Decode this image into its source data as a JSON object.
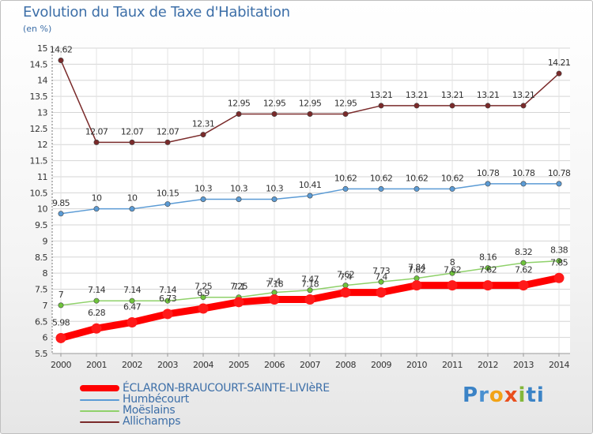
{
  "chart_data": {
    "type": "line",
    "title": "Evolution du Taux de Taxe d'Habitation",
    "ylabel": "(en %)",
    "xlabel": "",
    "x": [
      "2000",
      "2001",
      "2002",
      "2003",
      "2004",
      "2005",
      "2006",
      "2007",
      "2008",
      "2009",
      "2010",
      "2011",
      "2012",
      "2013",
      "2014"
    ],
    "ylim": [
      5.5,
      15
    ],
    "yticks": [
      "5.5",
      "6",
      "6.5",
      "7",
      "7.5",
      "8",
      "8.5",
      "9",
      "9.5",
      "10",
      "10.5",
      "11",
      "11.5",
      "12",
      "12.5",
      "13",
      "13.5",
      "14",
      "14.5",
      "15"
    ],
    "grid": true,
    "series": [
      {
        "name": "ÉCLARON-BRAUCOURT-SAINTE-LIVIèRE",
        "color": "#ff0000",
        "values": [
          5.98,
          6.28,
          6.47,
          6.73,
          6.9,
          7.1,
          7.18,
          7.18,
          7.4,
          7.4,
          7.62,
          7.62,
          7.62,
          7.62,
          7.85
        ],
        "labels": [
          "5.98",
          "6.28",
          "6.47",
          "6.73",
          "6.9",
          "7.1",
          "7.18",
          "7.18",
          "7.4",
          "7.4",
          "7.62",
          "7.62",
          "7.62",
          "7.62",
          "7.85"
        ]
      },
      {
        "name": "Humbécourt",
        "color": "#5b9bd5",
        "values": [
          9.85,
          10,
          10,
          10.15,
          10.3,
          10.3,
          10.3,
          10.41,
          10.62,
          10.62,
          10.62,
          10.62,
          10.78,
          10.78,
          10.78
        ],
        "labels": [
          "9.85",
          "10",
          "10",
          "10.15",
          "10.3",
          "10.3",
          "10.3",
          "10.41",
          "10.62",
          "10.62",
          "10.62",
          "10.62",
          "10.78",
          "10.78",
          "10.78"
        ]
      },
      {
        "name": "Moëslains",
        "color": "#8fd16a",
        "values": [
          7,
          7.14,
          7.14,
          7.14,
          7.25,
          7.25,
          7.4,
          7.47,
          7.62,
          7.73,
          7.84,
          8,
          8.16,
          8.32,
          8.38
        ],
        "labels": [
          "7",
          "7.14",
          "7.14",
          "7.14",
          "7.25",
          "7.25",
          "7.4",
          "7.47",
          "7.62",
          "7.73",
          "7.84",
          "8",
          "8.16",
          "8.32",
          "8.38"
        ]
      },
      {
        "name": "Allichamps",
        "color": "#7a2a2a",
        "values": [
          14.62,
          12.07,
          12.07,
          12.07,
          12.31,
          12.95,
          12.95,
          12.95,
          12.95,
          13.21,
          13.21,
          13.21,
          13.21,
          13.21,
          14.21
        ],
        "labels": [
          "14.62",
          "12.07",
          "12.07",
          "12.07",
          "12.31",
          "12.95",
          "12.95",
          "12.95",
          "12.95",
          "13.21",
          "13.21",
          "13.21",
          "13.21",
          "13.21",
          "14.21"
        ]
      }
    ]
  },
  "brand": {
    "letters": [
      "P",
      "r",
      "o",
      "x",
      "i",
      "ti"
    ]
  }
}
